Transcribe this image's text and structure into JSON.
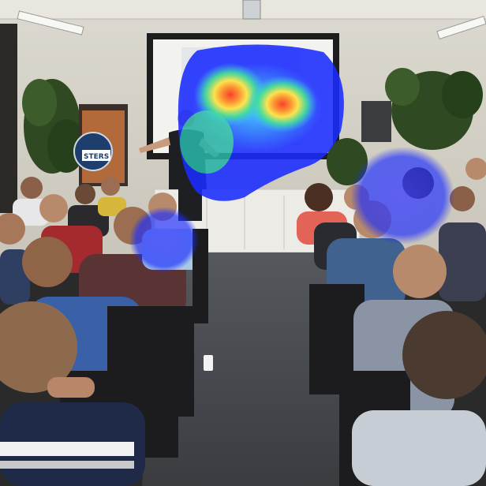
{
  "scene": {
    "type": "photo",
    "subject": "presentation-audience",
    "overlay": "attention-heatmap"
  },
  "colors": {
    "wall": "#d9d6cc",
    "ceiling": "#e8e6df",
    "carpet": "#4a4d52",
    "screen": "#f2f2ee",
    "screen_frame": "#1d1d1d",
    "cabinet": "#ecebe6",
    "plant": "#2f4a22",
    "heat_cold": "#1a2cff",
    "heat_mid": "#2fe08a",
    "heat_warm": "#ffe43a",
    "heat_hot": "#ff2a14"
  },
  "sign": {
    "text": "STERS"
  },
  "heatmap": {
    "regions": [
      {
        "name": "screen-region",
        "level": 0.55
      },
      {
        "name": "hotspot-left",
        "level": 1.0
      },
      {
        "name": "hotspot-right",
        "level": 0.95
      },
      {
        "name": "speaker-region",
        "level": 0.45
      },
      {
        "name": "right-audience-region",
        "level": 0.25
      },
      {
        "name": "center-audience-region",
        "level": 0.25
      }
    ]
  }
}
